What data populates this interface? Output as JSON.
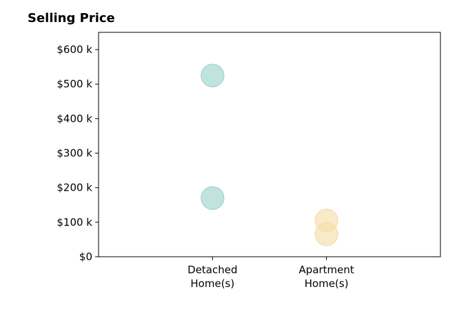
{
  "chart_data": {
    "type": "scatter",
    "title": "Selling Price",
    "xlabel": "",
    "ylabel": "",
    "categories": [
      [
        "Detached",
        "Home(s)"
      ],
      [
        "Apartment",
        "Home(s)"
      ]
    ],
    "x_positions": [
      1,
      2
    ],
    "xlim": [
      0,
      3
    ],
    "ylim": [
      0,
      650000
    ],
    "yticks": [
      0,
      100000,
      200000,
      300000,
      400000,
      500000,
      600000
    ],
    "ytick_labels": [
      "$0",
      "$100 k",
      "$200 k",
      "$300 k",
      "$400 k",
      "$500 k",
      "$600 k"
    ],
    "grid": false,
    "legend": "none",
    "points": [
      {
        "category": "Detached Home(s)",
        "x": 1,
        "y": 525000,
        "color": "#9fd4cd"
      },
      {
        "category": "Detached Home(s)",
        "x": 1,
        "y": 170000,
        "color": "#9fd4cd"
      },
      {
        "category": "Apartment Home(s)",
        "x": 2,
        "y": 105000,
        "color": "#f6deaa"
      },
      {
        "category": "Apartment Home(s)",
        "x": 2,
        "y": 65000,
        "color": "#f6deaa"
      }
    ],
    "colors": {
      "detached": "#9fd4cd",
      "apartment": "#f6deaa"
    }
  }
}
